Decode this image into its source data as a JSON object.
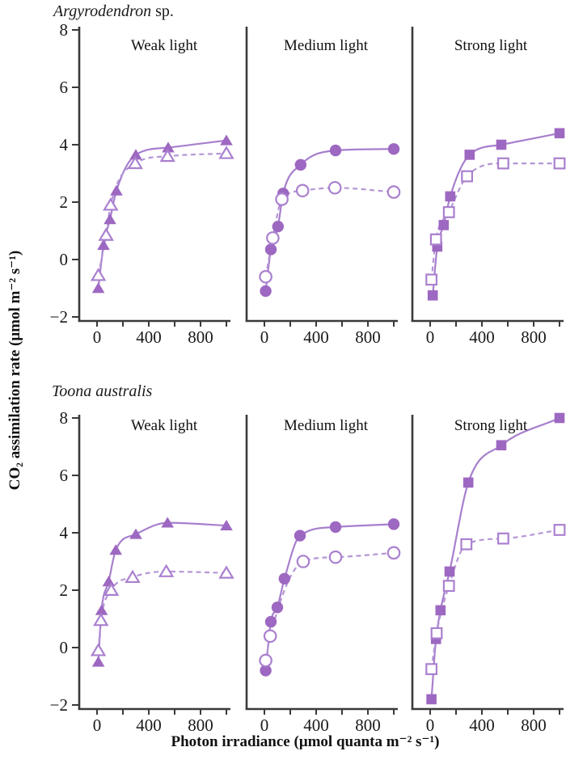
{
  "chart_data": {
    "type": "line",
    "xlabel": "Photon irradiance (μmol quanta m⁻² s⁻¹)",
    "ylabel": "CO₂ assimilation rate (μmol m⁻² s⁻¹)",
    "xlim": [
      -60,
      1060
    ],
    "ylim": [
      -2,
      8
    ],
    "x_ticks": [
      0,
      200,
      400,
      600,
      800,
      1000
    ],
    "x_tick_labels": [
      {
        "value": 0,
        "label": "0"
      },
      {
        "value": 400,
        "label": "400"
      },
      {
        "value": 800,
        "label": "800"
      }
    ],
    "y_ticks": [
      {
        "value": -2,
        "label": "−2"
      },
      {
        "value": 0,
        "label": "0"
      },
      {
        "value": 2,
        "label": "2"
      },
      {
        "value": 4,
        "label": "4"
      },
      {
        "value": 6,
        "label": "6"
      },
      {
        "value": 8,
        "label": "8"
      }
    ],
    "series_styles": {
      "filled": "filled markers, solid fitted curve",
      "open": "open markers, dashed fitted curve"
    },
    "rows": [
      {
        "species_italic": "Argyrodendron",
        "species_roman": " sp.",
        "panels": [
          {
            "label": "Weak light",
            "marker": "triangle",
            "filled_points": [
              [
                10,
                -1.0
              ],
              [
                50,
                0.5
              ],
              [
                100,
                1.4
              ],
              [
                150,
                2.4
              ],
              [
                300,
                3.65
              ],
              [
                550,
                3.9
              ],
              [
                1000,
                4.15
              ]
            ],
            "open_points": [
              [
                10,
                -0.55
              ],
              [
                70,
                0.85
              ],
              [
                105,
                1.9
              ],
              [
                295,
                3.35
              ],
              [
                545,
                3.6
              ],
              [
                1000,
                3.7
              ]
            ]
          },
          {
            "label": "Medium light",
            "marker": "circle",
            "filled_points": [
              [
                10,
                -1.1
              ],
              [
                50,
                0.35
              ],
              [
                105,
                1.15
              ],
              [
                145,
                2.3
              ],
              [
                280,
                3.3
              ],
              [
                550,
                3.8
              ],
              [
                1000,
                3.85
              ]
            ],
            "open_points": [
              [
                10,
                -0.6
              ],
              [
                65,
                0.75
              ],
              [
                135,
                2.1
              ],
              [
                295,
                2.4
              ],
              [
                545,
                2.5
              ],
              [
                1000,
                2.35
              ]
            ]
          },
          {
            "label": "Strong light",
            "marker": "square",
            "filled_points": [
              [
                20,
                -1.25
              ],
              [
                55,
                0.45
              ],
              [
                105,
                1.2
              ],
              [
                155,
                2.2
              ],
              [
                305,
                3.65
              ],
              [
                550,
                4.0
              ],
              [
                1000,
                4.4
              ]
            ],
            "open_points": [
              [
                10,
                -0.7
              ],
              [
                45,
                0.7
              ],
              [
                145,
                1.65
              ],
              [
                285,
                2.9
              ],
              [
                565,
                3.35
              ],
              [
                1000,
                3.35
              ]
            ]
          }
        ]
      },
      {
        "species_italic": "Toona australis",
        "species_roman": "",
        "panels": [
          {
            "label": "Weak light",
            "marker": "triangle",
            "filled_points": [
              [
                10,
                -0.5
              ],
              [
                35,
                1.3
              ],
              [
                90,
                2.3
              ],
              [
                145,
                3.4
              ],
              [
                300,
                3.95
              ],
              [
                545,
                4.35
              ],
              [
                1000,
                4.25
              ]
            ],
            "open_points": [
              [
                10,
                -0.1
              ],
              [
                30,
                0.95
              ],
              [
                110,
                2.0
              ],
              [
                275,
                2.45
              ],
              [
                535,
                2.65
              ],
              [
                1000,
                2.6
              ]
            ]
          },
          {
            "label": "Medium light",
            "marker": "circle",
            "filled_points": [
              [
                10,
                -0.8
              ],
              [
                50,
                0.9
              ],
              [
                100,
                1.4
              ],
              [
                155,
                2.4
              ],
              [
                275,
                3.9
              ],
              [
                550,
                4.2
              ],
              [
                1000,
                4.3
              ]
            ],
            "open_points": [
              [
                10,
                -0.45
              ],
              [
                45,
                0.4
              ],
              [
                300,
                3.0
              ],
              [
                550,
                3.15
              ],
              [
                1000,
                3.3
              ]
            ]
          },
          {
            "label": "Strong light",
            "marker": "square",
            "filled_points": [
              [
                10,
                -1.8
              ],
              [
                45,
                0.3
              ],
              [
                80,
                1.3
              ],
              [
                150,
                2.65
              ],
              [
                295,
                5.75
              ],
              [
                550,
                7.05
              ],
              [
                1000,
                8.0
              ]
            ],
            "open_points": [
              [
                10,
                -0.75
              ],
              [
                50,
                0.5
              ],
              [
                145,
                2.15
              ],
              [
                280,
                3.6
              ],
              [
                565,
                3.8
              ],
              [
                1000,
                4.1
              ]
            ]
          }
        ]
      }
    ],
    "colors": {
      "filled_marker": "#9d68c1",
      "solid_line": "#a77fcd",
      "open_marker_stroke": "#aa80cf",
      "open_marker_fill": "#ffffff",
      "dashed_line": "#b596d6",
      "axis": "#3a3a3a",
      "text": "#1a1a1a"
    }
  }
}
